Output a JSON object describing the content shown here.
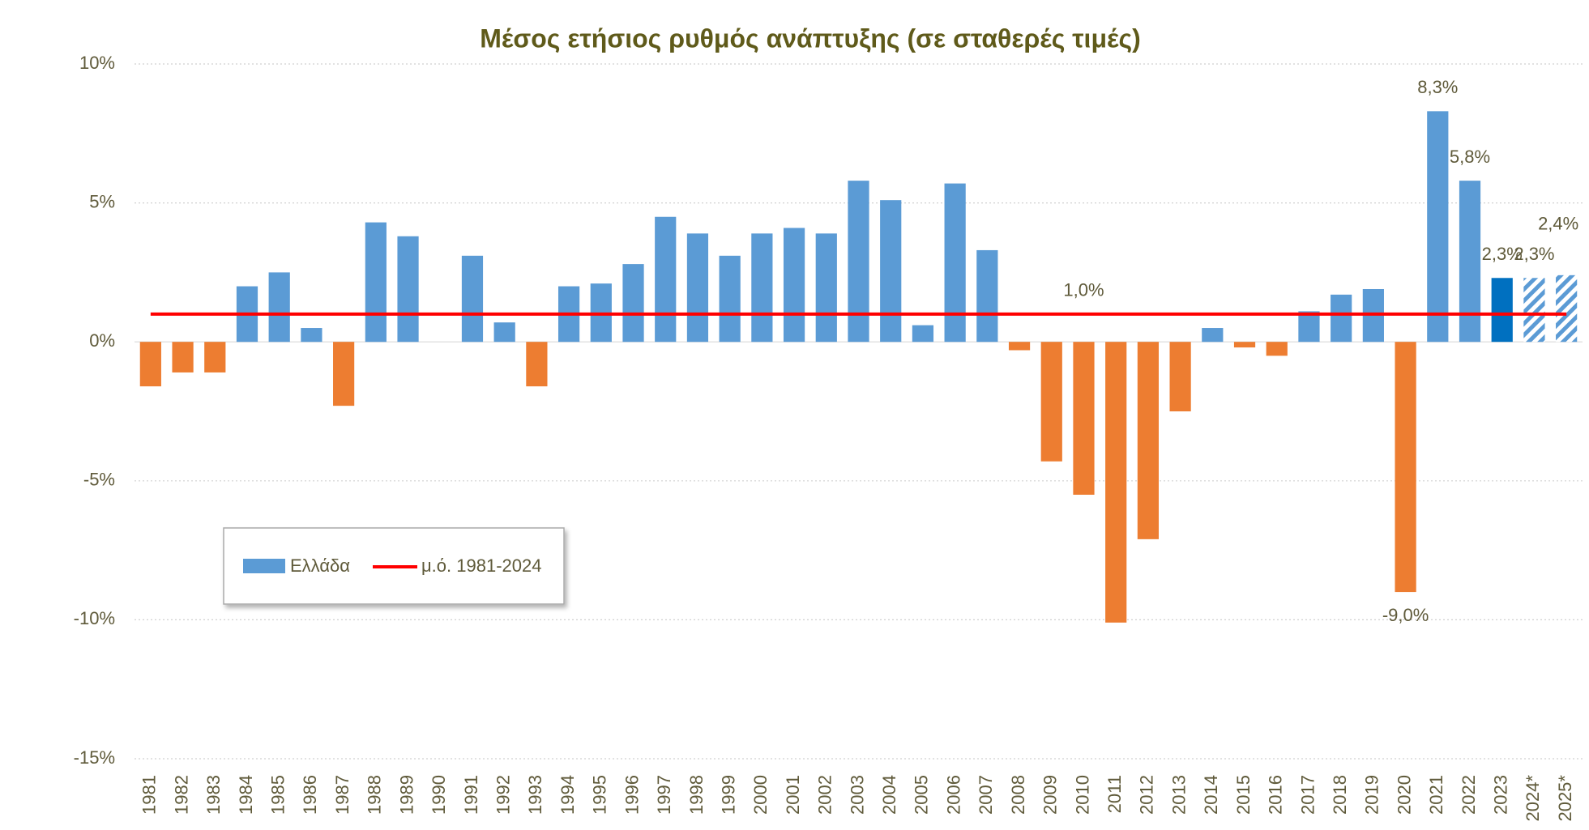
{
  "chart_data": {
    "type": "bar",
    "title": "Μέσος ετήσιος ρυθμός ανάπτυξης (σε σταθερές τιμές)",
    "categories": [
      "1981",
      "1982",
      "1983",
      "1984",
      "1985",
      "1986",
      "1987",
      "1988",
      "1989",
      "1990",
      "1991",
      "1992",
      "1993",
      "1994",
      "1995",
      "1996",
      "1997",
      "1998",
      "1999",
      "2000",
      "2001",
      "2002",
      "2003",
      "2004",
      "2005",
      "2006",
      "2007",
      "2008",
      "2009",
      "2010",
      "2011",
      "2012",
      "2013",
      "2014",
      "2015",
      "2016",
      "2017",
      "2018",
      "2019",
      "2020",
      "2021",
      "2022",
      "2023",
      "2024*",
      "2025*"
    ],
    "series": [
      {
        "name": "Ελλάδα",
        "color": "#5b9bd5",
        "values": [
          -1.6,
          -1.1,
          -1.1,
          2.0,
          2.5,
          0.5,
          -2.3,
          4.3,
          3.8,
          0.0,
          3.1,
          0.7,
          -1.6,
          2.0,
          2.1,
          2.8,
          4.5,
          3.9,
          3.1,
          3.9,
          4.1,
          3.9,
          5.8,
          5.1,
          0.6,
          5.7,
          3.3,
          -0.3,
          -4.3,
          -5.5,
          -10.1,
          -7.1,
          -2.5,
          0.5,
          -0.2,
          -0.5,
          1.1,
          1.7,
          1.9,
          -9.0,
          8.3,
          5.8,
          2.3,
          2.3,
          2.4
        ],
        "value_labels": [
          null,
          null,
          null,
          null,
          null,
          null,
          null,
          null,
          null,
          null,
          null,
          null,
          null,
          null,
          null,
          null,
          null,
          null,
          null,
          null,
          null,
          null,
          null,
          null,
          null,
          null,
          null,
          null,
          null,
          null,
          null,
          null,
          null,
          null,
          null,
          null,
          null,
          null,
          null,
          "-9,0%",
          "8,3%",
          "5,8%",
          "2,3%",
          "2,3%",
          "2,4%"
        ],
        "colors": [
          "#ed7d31",
          "#ed7d31",
          "#ed7d31",
          "#5b9bd5",
          "#5b9bd5",
          "#5b9bd5",
          "#ed7d31",
          "#5b9bd5",
          "#5b9bd5",
          "#5b9bd5",
          "#5b9bd5",
          "#5b9bd5",
          "#ed7d31",
          "#5b9bd5",
          "#5b9bd5",
          "#5b9bd5",
          "#5b9bd5",
          "#5b9bd5",
          "#5b9bd5",
          "#5b9bd5",
          "#5b9bd5",
          "#5b9bd5",
          "#5b9bd5",
          "#5b9bd5",
          "#5b9bd5",
          "#5b9bd5",
          "#5b9bd5",
          "#ed7d31",
          "#ed7d31",
          "#ed7d31",
          "#ed7d31",
          "#ed7d31",
          "#ed7d31",
          "#5b9bd5",
          "#ed7d31",
          "#ed7d31",
          "#5b9bd5",
          "#5b9bd5",
          "#5b9bd5",
          "#ed7d31",
          "#5b9bd5",
          "#5b9bd5",
          "#0070c0",
          "#5b9bd5",
          "#5b9bd5"
        ],
        "bar_styles": [
          "solid",
          "solid",
          "solid",
          "solid",
          "solid",
          "solid",
          "solid",
          "solid",
          "solid",
          "solid",
          "solid",
          "solid",
          "solid",
          "solid",
          "solid",
          "solid",
          "solid",
          "solid",
          "solid",
          "solid",
          "solid",
          "solid",
          "solid",
          "solid",
          "solid",
          "solid",
          "solid",
          "solid",
          "solid",
          "solid",
          "solid",
          "solid",
          "solid",
          "solid",
          "solid",
          "solid",
          "solid",
          "solid",
          "solid",
          "solid",
          "solid",
          "solid",
          "solid",
          "hatched",
          "hatched"
        ]
      }
    ],
    "average": {
      "name": "μ.ό. 1981-2024",
      "color": "#ff0000",
      "value": 1.0,
      "value_label": "1,0%"
    },
    "ylim": [
      -15,
      10
    ],
    "yticks": [
      {
        "value": -15,
        "label": "-15%"
      },
      {
        "value": -10,
        "label": "-10%"
      },
      {
        "value": -5,
        "label": "-5%"
      },
      {
        "value": 0,
        "label": "0%"
      },
      {
        "value": 5,
        "label": "5%"
      },
      {
        "value": 10,
        "label": "10%"
      }
    ],
    "grid": true
  }
}
